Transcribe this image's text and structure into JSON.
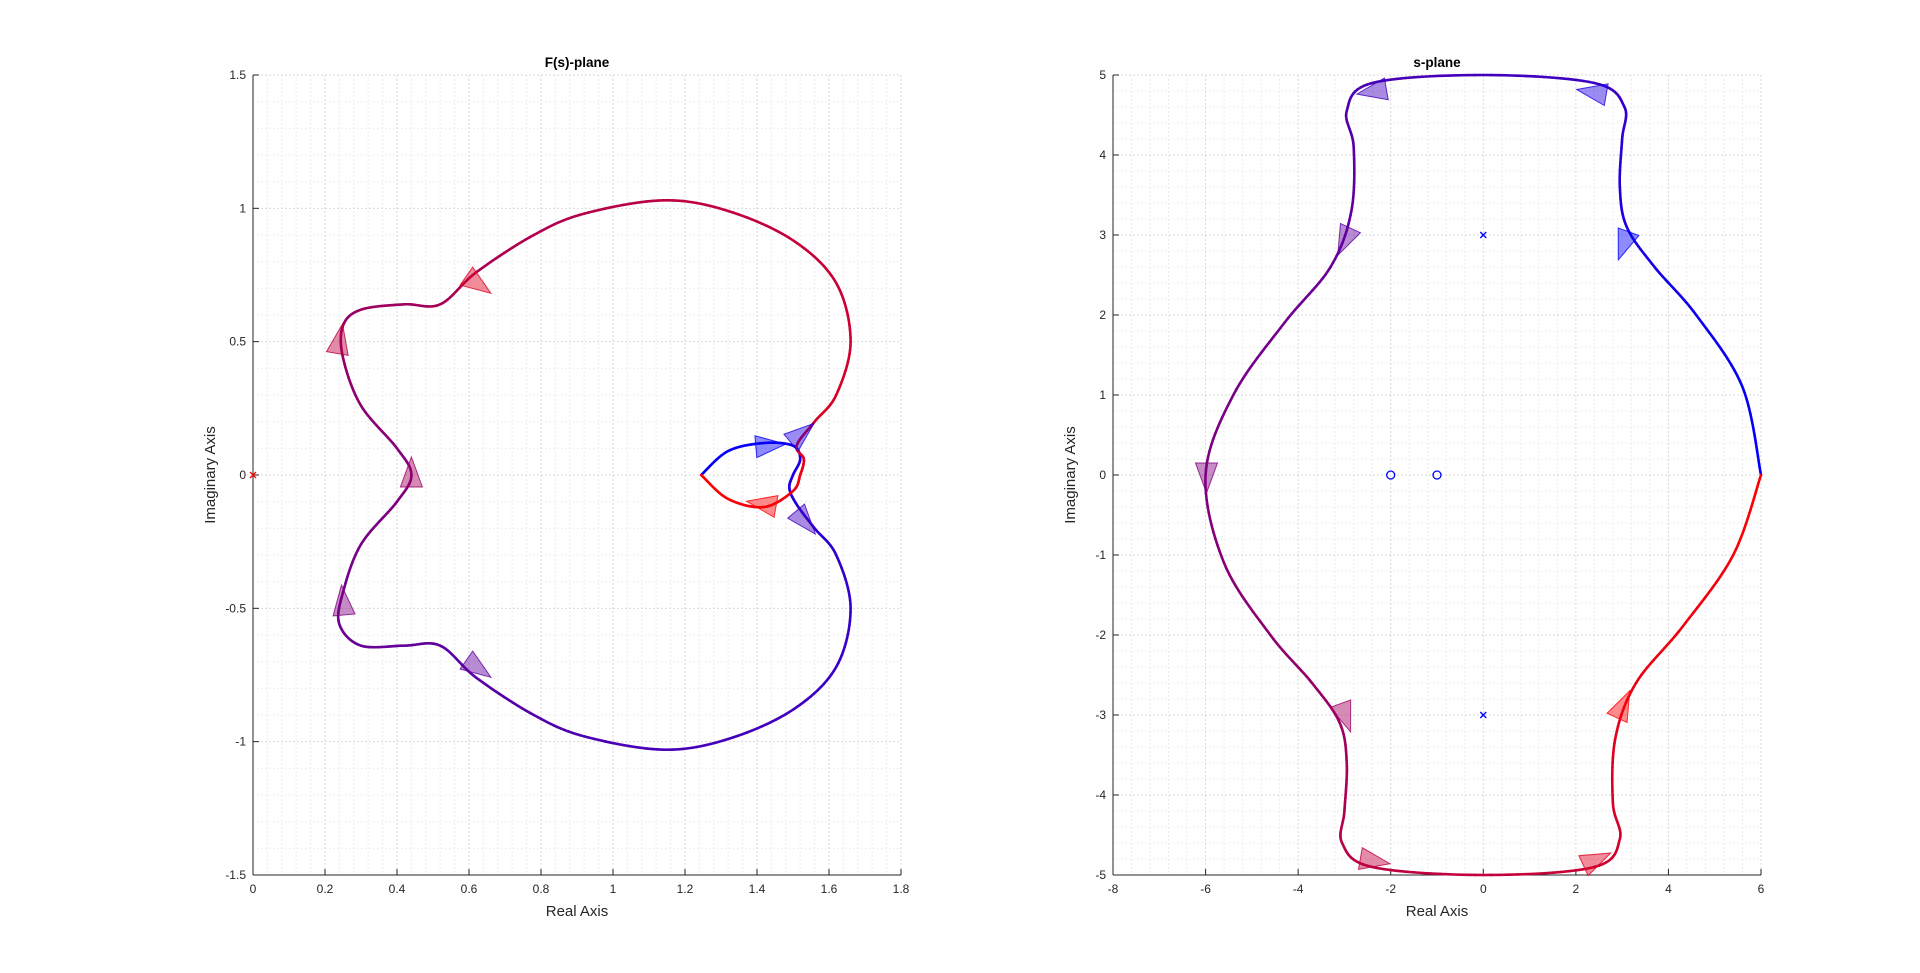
{
  "chart_data": [
    {
      "type": "line",
      "title": "F(s)-plane",
      "xlabel": "Real Axis",
      "ylabel": "Imaginary Axis",
      "xlim": [
        0,
        1.8
      ],
      "ylim": [
        -1.5,
        1.5
      ],
      "xticks": [
        0,
        0.2,
        0.4,
        0.6,
        0.8,
        1,
        1.2,
        1.4,
        1.6,
        1.8
      ],
      "xtick_labels": [
        "0",
        "0.2",
        "0.4",
        "0.6",
        "0.8",
        "1",
        "1.2",
        "1.4",
        "1.6",
        "1.8"
      ],
      "yticks": [
        -1.5,
        -1,
        -0.5,
        0,
        0.5,
        1,
        1.5
      ],
      "ytick_labels": [
        "-1.5",
        "-1",
        "-0.5",
        "0",
        "0.5",
        "1",
        "1.5"
      ],
      "grid": true,
      "minor_grid": true,
      "gradient": {
        "start": "#0000ff",
        "end": "#ff0000"
      },
      "contour": [
        [
          1.245,
          0.0
        ],
        [
          1.32,
          0.09
        ],
        [
          1.42,
          0.12
        ],
        [
          1.5,
          0.11
        ],
        [
          1.52,
          0.06
        ],
        [
          1.5,
          0.0
        ],
        [
          1.49,
          -0.05
        ],
        [
          1.51,
          -0.11
        ],
        [
          1.56,
          -0.2
        ],
        [
          1.62,
          -0.3
        ],
        [
          1.66,
          -0.5
        ],
        [
          1.62,
          -0.72
        ],
        [
          1.5,
          -0.88
        ],
        [
          1.32,
          -0.99
        ],
        [
          1.14,
          -1.03
        ],
        [
          0.92,
          -0.98
        ],
        [
          0.78,
          -0.9
        ],
        [
          0.62,
          -0.76
        ],
        [
          0.52,
          -0.64
        ],
        [
          0.42,
          -0.64
        ],
        [
          0.3,
          -0.64
        ],
        [
          0.24,
          -0.56
        ],
        [
          0.25,
          -0.44
        ],
        [
          0.3,
          -0.26
        ],
        [
          0.4,
          -0.1
        ],
        [
          0.44,
          0.0
        ],
        [
          0.4,
          0.1
        ],
        [
          0.3,
          0.26
        ],
        [
          0.25,
          0.44
        ],
        [
          0.25,
          0.56
        ],
        [
          0.3,
          0.62
        ],
        [
          0.42,
          0.64
        ],
        [
          0.52,
          0.64
        ],
        [
          0.62,
          0.76
        ],
        [
          0.78,
          0.9
        ],
        [
          0.92,
          0.98
        ],
        [
          1.14,
          1.03
        ],
        [
          1.32,
          0.99
        ],
        [
          1.5,
          0.88
        ],
        [
          1.62,
          0.72
        ],
        [
          1.66,
          0.5
        ],
        [
          1.62,
          0.3
        ],
        [
          1.56,
          0.2
        ],
        [
          1.51,
          0.11
        ],
        [
          1.53,
          0.06
        ],
        [
          1.52,
          0.0
        ],
        [
          1.5,
          -0.06
        ],
        [
          1.42,
          -0.12
        ],
        [
          1.32,
          -0.09
        ],
        [
          1.245,
          0.0
        ]
      ],
      "arrows": [
        {
          "x": 1.43,
          "y": 0.11,
          "angle": 5
        },
        {
          "x": 1.52,
          "y": 0.15,
          "angle": 40
        },
        {
          "x": 1.53,
          "y": -0.17,
          "angle": -50
        },
        {
          "x": 0.62,
          "y": -0.72,
          "angle": -35
        },
        {
          "x": 0.25,
          "y": -0.48,
          "angle": 95
        },
        {
          "x": 0.44,
          "y": 0.0,
          "angle": 90
        },
        {
          "x": 0.24,
          "y": 0.5,
          "angle": 80
        },
        {
          "x": 0.62,
          "y": 0.72,
          "angle": -35
        },
        {
          "x": 1.42,
          "y": -0.11,
          "angle": 170
        }
      ],
      "markers": [
        {
          "x": 0.0,
          "y": 0.0,
          "symbol": "x",
          "color": "#ff0000"
        }
      ]
    },
    {
      "type": "line",
      "title": "s-plane",
      "xlabel": "Real Axis",
      "ylabel": "Imaginary Axis",
      "xlim": [
        -8,
        6
      ],
      "ylim": [
        -5,
        5
      ],
      "xticks": [
        -8,
        -6,
        -4,
        -2,
        0,
        2,
        4,
        6
      ],
      "xtick_labels": [
        "-8",
        "-6",
        "-4",
        "-2",
        "0",
        "2",
        "4",
        "6"
      ],
      "yticks": [
        -5,
        -4,
        -3,
        -2,
        -1,
        0,
        1,
        2,
        3,
        4,
        5
      ],
      "ytick_labels": [
        "-5",
        "-4",
        "-3",
        "-2",
        "-1",
        "0",
        "1",
        "2",
        "3",
        "4",
        "5"
      ],
      "grid": true,
      "minor_grid": true,
      "gradient": {
        "start": "#0000ff",
        "end": "#ff0000"
      },
      "contour": [
        [
          6.0,
          0.0
        ],
        [
          5.6,
          1.1
        ],
        [
          4.6,
          2.0
        ],
        [
          3.7,
          2.6
        ],
        [
          3.1,
          3.1
        ],
        [
          2.95,
          3.6
        ],
        [
          3.0,
          4.2
        ],
        [
          3.05,
          4.6
        ],
        [
          2.4,
          4.9
        ],
        [
          0.0,
          5.0
        ],
        [
          -2.4,
          4.9
        ],
        [
          -2.95,
          4.55
        ],
        [
          -2.8,
          4.1
        ],
        [
          -2.85,
          3.3
        ],
        [
          -3.3,
          2.6
        ],
        [
          -4.3,
          1.9
        ],
        [
          -5.4,
          1.0
        ],
        [
          -6.0,
          0.0
        ],
        [
          -5.6,
          -1.1
        ],
        [
          -4.6,
          -2.0
        ],
        [
          -3.7,
          -2.6
        ],
        [
          -3.1,
          -3.1
        ],
        [
          -2.95,
          -3.6
        ],
        [
          -3.0,
          -4.2
        ],
        [
          -3.05,
          -4.6
        ],
        [
          -2.4,
          -4.9
        ],
        [
          0.0,
          -5.0
        ],
        [
          2.4,
          -4.9
        ],
        [
          2.95,
          -4.55
        ],
        [
          2.8,
          -4.1
        ],
        [
          2.85,
          -3.3
        ],
        [
          3.3,
          -2.6
        ],
        [
          4.3,
          -1.9
        ],
        [
          5.4,
          -1.0
        ],
        [
          6.0,
          0.0
        ]
      ],
      "arrows": [
        {
          "x": 3.05,
          "y": 2.9,
          "angle": -110
        },
        {
          "x": 2.4,
          "y": 4.78,
          "angle": 170
        },
        {
          "x": -2.35,
          "y": 4.8,
          "angle": -170
        },
        {
          "x": -2.98,
          "y": 2.95,
          "angle": -115
        },
        {
          "x": -5.98,
          "y": 0.0,
          "angle": -90
        },
        {
          "x": -3.0,
          "y": -3.0,
          "angle": -70
        },
        {
          "x": -2.4,
          "y": -4.82,
          "angle": -10
        },
        {
          "x": 2.4,
          "y": -4.82,
          "angle": 25
        },
        {
          "x": 3.0,
          "y": -2.9,
          "angle": 65
        }
      ],
      "markers": [
        {
          "x": 0.0,
          "y": 3.0,
          "symbol": "x",
          "color": "#0000ff"
        },
        {
          "x": 0.0,
          "y": -3.0,
          "symbol": "x",
          "color": "#0000ff"
        },
        {
          "x": -2.0,
          "y": 0.0,
          "symbol": "o",
          "color": "#0000ff"
        },
        {
          "x": -1.0,
          "y": 0.0,
          "symbol": "o",
          "color": "#0000ff"
        }
      ]
    }
  ]
}
